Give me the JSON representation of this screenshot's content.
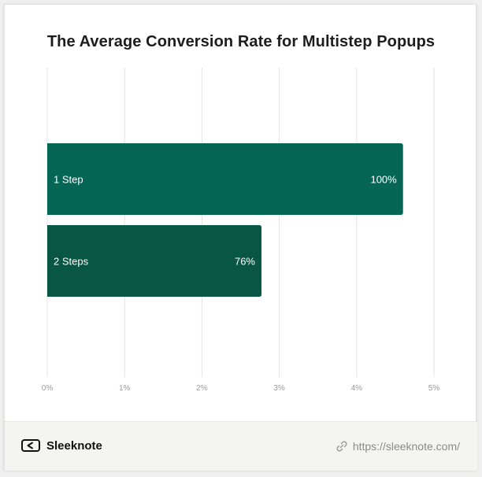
{
  "header": {
    "title": "The Average Conversion Rate for Multistep Popups"
  },
  "chart_data": {
    "type": "bar",
    "orientation": "horizontal",
    "title": "The Average Conversion Rate for Multistep Popups",
    "categories": [
      "1 Step",
      "2 Steps"
    ],
    "values": [
      4.6,
      2.77
    ],
    "data_labels": [
      "100%",
      "76%"
    ],
    "xlim": [
      0,
      5
    ],
    "xticks": [
      0,
      1,
      2,
      3,
      4,
      5
    ],
    "xtick_labels": [
      "0%",
      "1%",
      "2%",
      "3%",
      "4%",
      "5%"
    ],
    "xlabel": "",
    "ylabel": "",
    "grid": true,
    "legend": "none",
    "colors": [
      "#066655",
      "#0a5645"
    ]
  },
  "footer": {
    "brand": "Sleeknote",
    "url": "https://sleeknote.com/"
  },
  "colors": {
    "grid": "#e3e3e3",
    "tick_text": "#9a9a9a",
    "label_text": "#ffffff"
  }
}
